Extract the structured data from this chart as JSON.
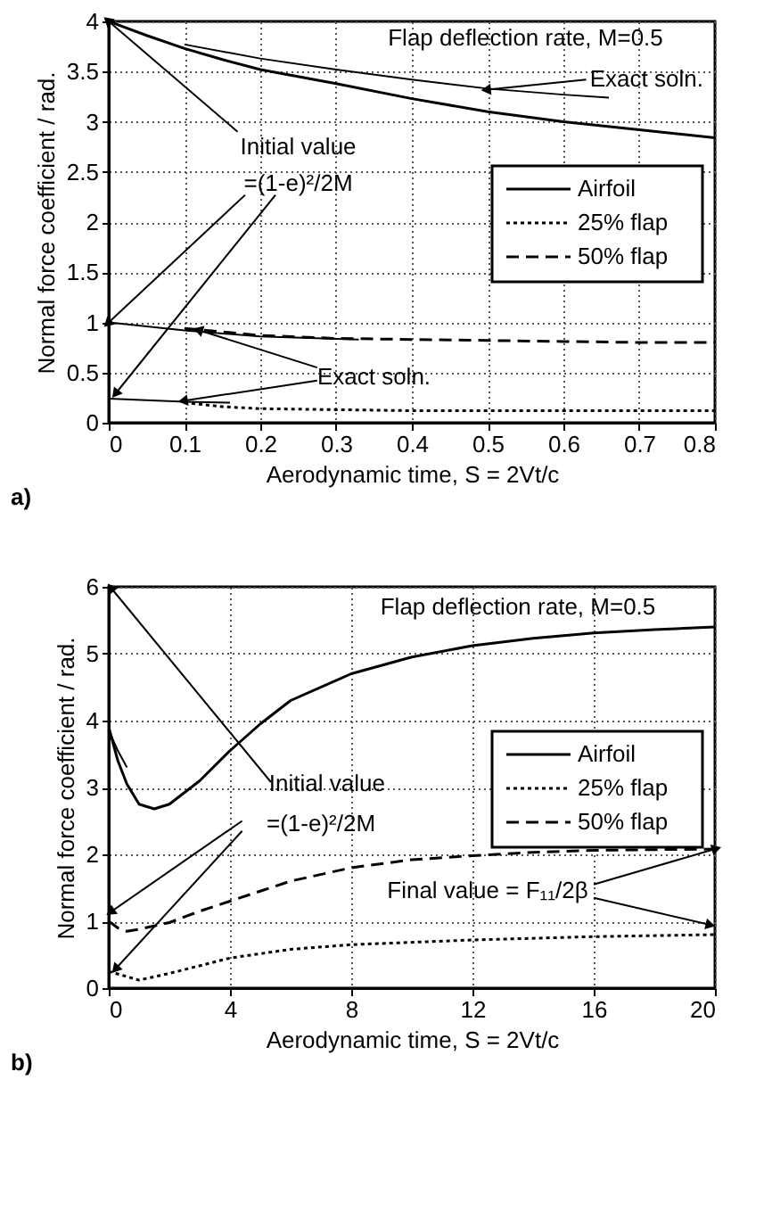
{
  "chart_data": [
    {
      "type": "line",
      "xlabel": "Aerodynamic time, S = 2Vt/c",
      "ylabel": "Normal force coefficient / rad.",
      "xlim": [
        0,
        0.8
      ],
      "xticks": [
        0,
        0.1,
        0.2,
        0.3,
        0.4,
        0.5,
        0.6,
        0.7,
        0.8
      ],
      "ylim": [
        0,
        4
      ],
      "yticks": [
        0,
        0.5,
        1,
        1.5,
        2,
        2.5,
        3,
        3.5,
        4
      ],
      "grid": true,
      "legend": "right",
      "series": [
        {
          "name": "Airfoil",
          "color": "#000000",
          "line_style": "solid",
          "x": [
            0,
            0.05,
            0.1,
            0.15,
            0.2,
            0.3,
            0.4,
            0.5,
            0.6,
            0.7,
            0.8
          ],
          "values": [
            4,
            3.86,
            3.73,
            3.62,
            3.52,
            3.38,
            3.23,
            3.1,
            3.0,
            2.92,
            2.84
          ]
        },
        {
          "name": "25% flap",
          "color": "#000000",
          "line_style": "dotted",
          "x": [
            0.1,
            0.15,
            0.2,
            0.3,
            0.4,
            0.5,
            0.6,
            0.7,
            0.8
          ],
          "values": [
            0.2,
            0.16,
            0.14,
            0.13,
            0.12,
            0.12,
            0.12,
            0.12,
            0.12
          ]
        },
        {
          "name": "50% flap",
          "color": "#000000",
          "line_style": "dashed",
          "x": [
            0.1,
            0.2,
            0.3,
            0.4,
            0.5,
            0.6,
            0.7,
            0.8
          ],
          "values": [
            0.94,
            0.87,
            0.84,
            0.83,
            0.82,
            0.81,
            0.8,
            0.8
          ]
        },
        {
          "color": "#000000",
          "line_style": "solid",
          "x": [
            0.1,
            0.2,
            0.3,
            0.4,
            0.5,
            0.6,
            0.66
          ],
          "values": [
            3.77,
            3.63,
            3.52,
            3.42,
            3.33,
            3.27,
            3.24
          ]
        },
        {
          "color": "#000000",
          "line_style": "solid",
          "x": [
            0,
            0.1,
            0.2,
            0.33
          ],
          "values": [
            1,
            0.92,
            0.86,
            0.83
          ]
        },
        {
          "color": "#000000",
          "line_style": "solid",
          "x": [
            0,
            0.1,
            0.16
          ],
          "values": [
            0.24,
            0.21,
            0.2
          ]
        }
      ],
      "annotations": [
        "Flap deflection rate, M=0.5",
        {
          "text": "Exact soln.",
          "x": 0.5,
          "y": 3.32
        },
        {
          "text": "Initial value",
          "x": 0,
          "y": 4
        },
        {
          "text": "=(1-e)²/2M",
          "x": 0,
          "y": 1
        },
        {
          "text": "Exact soln.",
          "x": 0.12,
          "y": 0.92
        },
        "a)"
      ]
    },
    {
      "type": "line",
      "xlabel": "Aerodynamic time, S = 2Vt/c",
      "ylabel": "Normal force coefficient / rad.",
      "xlim": [
        0,
        20
      ],
      "xticks": [
        0,
        4,
        8,
        12,
        16,
        20
      ],
      "ylim": [
        0,
        6
      ],
      "yticks": [
        0,
        1,
        2,
        3,
        4,
        5,
        6
      ],
      "grid": true,
      "legend": "right",
      "series": [
        {
          "name": "Airfoil",
          "color": "#000000",
          "line_style": "solid",
          "x": [
            0,
            0.3,
            0.6,
            1,
            1.5,
            2,
            3,
            4,
            5,
            6,
            8,
            10,
            12,
            14,
            16,
            18,
            20
          ],
          "values": [
            3.9,
            3.4,
            3.05,
            2.75,
            2.68,
            2.75,
            3.1,
            3.55,
            3.95,
            4.3,
            4.7,
            4.95,
            5.12,
            5.23,
            5.31,
            5.36,
            5.4
          ]
        },
        {
          "name": "25% flap",
          "color": "#000000",
          "line_style": "dotted",
          "x": [
            0,
            1,
            2,
            4,
            6,
            8,
            12,
            16,
            20
          ],
          "values": [
            0.25,
            0.12,
            0.22,
            0.45,
            0.58,
            0.65,
            0.72,
            0.77,
            0.8
          ]
        },
        {
          "name": "50% flap",
          "color": "#000000",
          "line_style": "dashed",
          "x": [
            0,
            0.3,
            0.6,
            1,
            2,
            3,
            4,
            5,
            6,
            8,
            10,
            12,
            14,
            16,
            18,
            20
          ],
          "values": [
            1.0,
            0.9,
            0.85,
            0.88,
            0.98,
            1.15,
            1.3,
            1.45,
            1.6,
            1.8,
            1.92,
            1.98,
            2.03,
            2.06,
            2.07,
            2.08
          ]
        },
        {
          "color": "#000000",
          "line_style": "solid",
          "x": [
            0,
            0.3,
            0.6
          ],
          "values": [
            3.85,
            3.55,
            3.3
          ]
        }
      ],
      "annotations": [
        "Flap deflection rate, M=0.5",
        "Initial value",
        {
          "text": "=(1-e)²/2M",
          "x": 0.1,
          "y": 1.15
        },
        {
          "text": "Final value = F₁₁/2β",
          "x": 20,
          "y": 2.08
        },
        "b)"
      ]
    }
  ]
}
